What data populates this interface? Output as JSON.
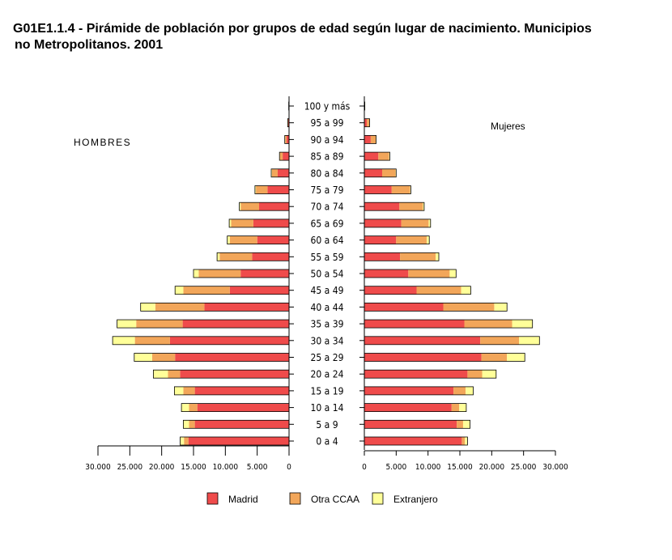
{
  "title": {
    "line1": "G01E1.1.4 - Pirámide de población por grupos de edad según lugar de nacimiento. Municipios",
    "line2": "no Metropolitanos. 2001"
  },
  "colors": {
    "Madrid": "#ef4b4b",
    "Otra CCAA": "#f2a65a",
    "Extranjero": "#ffff99",
    "outline": "#000000"
  },
  "chart_data": {
    "type": "bar",
    "orientation": "horizontal-pyramid",
    "left_label": "HOMBRES",
    "right_label": "Mujeres",
    "categories": [
      "0 a 4",
      "5 a 9",
      "10 a 14",
      "15 a 19",
      "20 a 24",
      "25 a 29",
      "30 a 34",
      "35 a 39",
      "40 a 44",
      "45 a 49",
      "50 a 54",
      "55 a 59",
      "60 a 64",
      "65 a 69",
      "70 a 74",
      "75 a 79",
      "80 a 84",
      "85 a 89",
      "90 a 94",
      "95 a 99",
      "100 y más"
    ],
    "category_labels": [
      "0 a 4",
      "5 a 9",
      "10 a 14",
      "15 a 19",
      "20 a 24",
      "25 a 29",
      "30 a 34",
      "35 a 39",
      "40 a 44",
      "45 a 49",
      "50 a 54",
      "55 a 59",
      "60 a 64",
      "65 a 69",
      "70 a 74",
      "75 a 79",
      "80 a 84",
      "85 a 89",
      "90 a 94",
      "95 a 99",
      "100 y más"
    ],
    "hombres": {
      "Madrid": [
        15800,
        14800,
        14400,
        14800,
        17100,
        17900,
        18700,
        16700,
        13300,
        9300,
        7600,
        5800,
        5000,
        5600,
        4700,
        3400,
        1800,
        1000,
        400,
        150,
        30
      ],
      "Otra CCAA": [
        700,
        900,
        1300,
        1800,
        1900,
        3600,
        5500,
        7300,
        7700,
        7300,
        6600,
        5100,
        4300,
        3500,
        2900,
        1800,
        900,
        450,
        250,
        50,
        10
      ],
      "Extranjero": [
        600,
        900,
        1200,
        1400,
        2300,
        2800,
        3500,
        3000,
        2300,
        1300,
        800,
        400,
        400,
        300,
        200,
        150,
        100,
        50,
        30,
        10,
        5
      ]
    },
    "mujeres": {
      "Madrid": [
        15300,
        14500,
        13700,
        14000,
        16200,
        18400,
        18200,
        15700,
        12400,
        8200,
        6900,
        5600,
        5000,
        5800,
        5500,
        4300,
        2800,
        2200,
        1000,
        400,
        50
      ],
      "Otra CCAA": [
        500,
        1000,
        1200,
        1900,
        2300,
        4000,
        6100,
        7500,
        8000,
        7000,
        6500,
        5600,
        4800,
        4300,
        3700,
        2900,
        2100,
        1700,
        800,
        400,
        20
      ],
      "Extranjero": [
        400,
        1100,
        1100,
        1200,
        2200,
        2800,
        3200,
        3200,
        2000,
        1500,
        1000,
        500,
        400,
        300,
        200,
        100,
        100,
        100,
        50,
        20,
        5
      ]
    },
    "x_left": {
      "ylim": [
        0,
        30000
      ],
      "ticks": [
        30000,
        25000,
        20000,
        15000,
        10000,
        5000,
        0
      ],
      "tick_labels": [
        "30.000",
        "25.000",
        "20.000",
        "15.000",
        "10.000",
        "5.000",
        "0"
      ]
    },
    "x_right": {
      "ylim": [
        0,
        30000
      ],
      "ticks": [
        0,
        5000,
        10000,
        15000,
        20000,
        25000,
        30000
      ],
      "tick_labels": [
        "0",
        "5.000",
        "10.000",
        "15.000",
        "20.000",
        "25.000",
        "30.000"
      ]
    },
    "series": [
      {
        "name": "Madrid"
      },
      {
        "name": "Otra CCAA"
      },
      {
        "name": "Extranjero"
      }
    ],
    "legend_position": "bottom",
    "grid": false
  }
}
